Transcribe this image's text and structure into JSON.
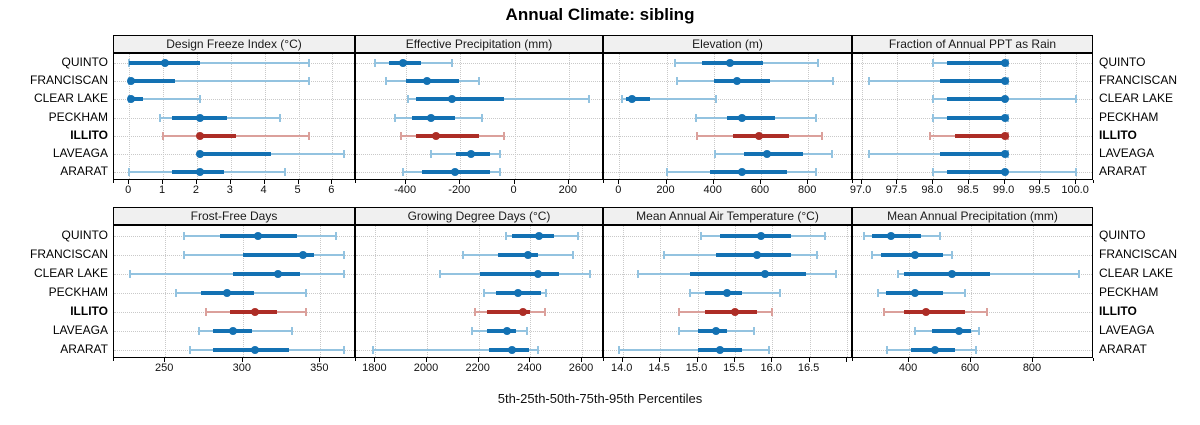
{
  "title": "Annual Climate: sibling",
  "caption": "5th-25th-50th-75th-95th Percentiles",
  "sites": [
    "QUINTO",
    "FRANCISCAN",
    "CLEAR LAKE",
    "PECKHAM",
    "ILLITO",
    "LAVEAGA",
    "ARARAT"
  ],
  "highlight_site": "ILLITO",
  "colors": {
    "blue": "#1371b3",
    "blue_light": "#93c3e0",
    "red": "#ad2d26",
    "red_light": "#dba09b",
    "grid": "#c9c9c9",
    "header_bg": "#f0f0f0",
    "border": "#000000"
  },
  "chart_data": [
    {
      "type": "dot-whisker-percentiles",
      "title": "Design Freeze Index (°C)",
      "row": 1,
      "col": 1,
      "xlim": [
        -0.45,
        6.7
      ],
      "tick_values": [
        0,
        1,
        2,
        3,
        4,
        5,
        6
      ],
      "tick_labels": [
        "0",
        "1",
        "2",
        "3",
        "4",
        "5",
        "6"
      ],
      "percentiles_5_25_50_75_95": {
        "QUINTO": [
          0,
          0,
          1.05,
          2.1,
          5.3
        ],
        "FRANCISCAN": [
          0,
          0,
          0.05,
          1.35,
          5.3
        ],
        "CLEAR LAKE": [
          0,
          0,
          0.05,
          0.4,
          2.1
        ],
        "PECKHAM": [
          0.9,
          1.25,
          2.1,
          2.9,
          4.45
        ],
        "ILLITO": [
          1.0,
          2.1,
          2.1,
          3.15,
          5.3
        ],
        "LAVEAGA": [
          2.1,
          2.1,
          2.1,
          4.2,
          6.35
        ],
        "ARARAT": [
          0,
          1.25,
          2.1,
          2.8,
          4.6
        ]
      }
    },
    {
      "type": "dot-whisker-percentiles",
      "title": "Effective Precipitation (mm)",
      "row": 1,
      "col": 2,
      "xlim": [
        -585,
        330
      ],
      "tick_values": [
        -400,
        -200,
        0,
        200
      ],
      "tick_labels": [
        "-400",
        "-200",
        "0",
        "200"
      ],
      "percentiles_5_25_50_75_95": {
        "QUINTO": [
          -515,
          -465,
          -410,
          -345,
          -230
        ],
        "FRANCISCAN": [
          -475,
          -400,
          -325,
          -205,
          -130
        ],
        "CLEAR LAKE": [
          -395,
          -365,
          -230,
          -40,
          275
        ],
        "PECKHAM": [
          -440,
          -380,
          -310,
          -220,
          -120
        ],
        "ILLITO": [
          -420,
          -365,
          -290,
          -130,
          -40
        ],
        "LAVEAGA": [
          -310,
          -215,
          -160,
          -90,
          -55
        ],
        "ARARAT": [
          -410,
          -340,
          -220,
          -90,
          -55
        ]
      }
    },
    {
      "type": "dot-whisker-percentiles",
      "title": "Elevation (m)",
      "row": 1,
      "col": 3,
      "xlim": [
        -65,
        990
      ],
      "tick_values": [
        0,
        200,
        400,
        600,
        800
      ],
      "tick_labels": [
        "0",
        "200",
        "400",
        "600",
        "800"
      ],
      "percentiles_5_25_50_75_95": {
        "QUINTO": [
          235,
          350,
          470,
          610,
          840
        ],
        "FRANCISCAN": [
          245,
          400,
          500,
          640,
          905
        ],
        "CLEAR LAKE": [
          10,
          30,
          55,
          130,
          410
        ],
        "PECKHAM": [
          325,
          455,
          520,
          660,
          835
        ],
        "ILLITO": [
          330,
          480,
          590,
          720,
          860
        ],
        "LAVEAGA": [
          405,
          530,
          625,
          780,
          900
        ],
        "ARARAT": [
          200,
          385,
          520,
          710,
          835
        ]
      }
    },
    {
      "type": "dot-whisker-percentiles",
      "title": "Fraction of Annual PPT as Rain",
      "row": 1,
      "col": 4,
      "xlim": [
        96.88,
        100.25
      ],
      "tick_values": [
        97.0,
        97.5,
        98.0,
        98.5,
        99.0,
        99.5,
        100.0
      ],
      "tick_labels": [
        "97.0",
        "97.5",
        "98.0",
        "98.5",
        "99.0",
        "99.5",
        "100.0"
      ],
      "percentiles_5_25_50_75_95": {
        "QUINTO": [
          98.0,
          98.2,
          99.0,
          99.0,
          99.05
        ],
        "FRANCISCAN": [
          97.1,
          98.1,
          99.0,
          99.0,
          99.05
        ],
        "CLEAR LAKE": [
          98.0,
          98.2,
          99.0,
          99.05,
          100.0
        ],
        "PECKHAM": [
          98.0,
          98.2,
          99.0,
          99.0,
          99.05
        ],
        "ILLITO": [
          97.95,
          98.3,
          99.0,
          99.0,
          99.05
        ],
        "LAVEAGA": [
          97.1,
          98.1,
          99.0,
          99.0,
          99.05
        ],
        "ARARAT": [
          98.0,
          98.2,
          99.0,
          99.05,
          100.0
        ]
      }
    },
    {
      "type": "dot-whisker-percentiles",
      "title": "Frost-Free Days",
      "row": 2,
      "col": 1,
      "xlim": [
        217,
        373
      ],
      "tick_values": [
        250,
        300,
        350
      ],
      "tick_labels": [
        "250",
        "300",
        "350"
      ],
      "percentiles_5_25_50_75_95": {
        "QUINTO": [
          262,
          285,
          310,
          335,
          360
        ],
        "FRANCISCAN": [
          262,
          300,
          339,
          346,
          365
        ],
        "CLEAR LAKE": [
          227,
          294,
          323,
          337,
          365
        ],
        "PECKHAM": [
          257,
          273,
          290,
          307,
          341
        ],
        "ILLITO": [
          276,
          292,
          308,
          322,
          341
        ],
        "LAVEAGA": [
          272,
          281,
          294,
          306,
          332
        ],
        "ARARAT": [
          266,
          281,
          308,
          330,
          365
        ]
      }
    },
    {
      "type": "dot-whisker-percentiles",
      "title": "Growing Degree Days (°C)",
      "row": 2,
      "col": 2,
      "xlim": [
        1725,
        2685
      ],
      "tick_values": [
        1800,
        2000,
        2200,
        2400,
        2600
      ],
      "tick_labels": [
        "1800",
        "2000",
        "2200",
        "2400",
        "2600"
      ],
      "percentiles_5_25_50_75_95": {
        "QUINTO": [
          2305,
          2330,
          2435,
          2490,
          2585
        ],
        "FRANCISCAN": [
          2140,
          2275,
          2390,
          2430,
          2565
        ],
        "CLEAR LAKE": [
          2050,
          2205,
          2430,
          2510,
          2630
        ],
        "PECKHAM": [
          2220,
          2265,
          2350,
          2440,
          2460
        ],
        "ILLITO": [
          2185,
          2230,
          2370,
          2400,
          2455
        ],
        "LAVEAGA": [
          2175,
          2230,
          2310,
          2345,
          2385
        ],
        "ARARAT": [
          1790,
          2240,
          2330,
          2395,
          2430
        ]
      }
    },
    {
      "type": "dot-whisker-percentiles",
      "title": "Mean Annual Air Temperature (°C)",
      "row": 2,
      "col": 3,
      "xlim": [
        13.75,
        17.08
      ],
      "tick_values": [
        14.0,
        14.5,
        15.0,
        15.5,
        16.0,
        16.5,
        17.0
      ],
      "tick_labels": [
        "14.0",
        "14.5",
        "15.0",
        "15.5",
        "16.0",
        "16.5",
        ""
      ],
      "percentiles_5_25_50_75_95": {
        "QUINTO": [
          15.05,
          15.3,
          15.85,
          16.25,
          16.7
        ],
        "FRANCISCAN": [
          14.55,
          15.25,
          15.8,
          16.25,
          16.6
        ],
        "CLEAR LAKE": [
          14.2,
          14.9,
          15.9,
          16.45,
          16.85
        ],
        "PECKHAM": [
          14.9,
          15.1,
          15.4,
          15.6,
          16.1
        ],
        "ILLITO": [
          14.75,
          15.1,
          15.5,
          15.8,
          16.0
        ],
        "LAVEAGA": [
          14.75,
          15.0,
          15.25,
          15.4,
          15.75
        ],
        "ARARAT": [
          13.95,
          15.0,
          15.3,
          15.6,
          15.95
        ]
      }
    },
    {
      "type": "dot-whisker-percentiles",
      "title": "Mean Annual Precipitation (mm)",
      "row": 2,
      "col": 4,
      "xlim": [
        219,
        997
      ],
      "tick_values": [
        400,
        600,
        800
      ],
      "tick_labels": [
        "400",
        "600",
        "800"
      ],
      "percentiles_5_25_50_75_95": {
        "QUINTO": [
          255,
          280,
          340,
          440,
          500
        ],
        "FRANCISCAN": [
          280,
          310,
          420,
          510,
          540
        ],
        "CLEAR LAKE": [
          365,
          385,
          540,
          660,
          950
        ],
        "PECKHAM": [
          300,
          325,
          420,
          510,
          580
        ],
        "ILLITO": [
          320,
          385,
          455,
          580,
          650
        ],
        "LAVEAGA": [
          420,
          475,
          560,
          600,
          625
        ],
        "ARARAT": [
          330,
          405,
          485,
          550,
          615
        ]
      }
    }
  ]
}
